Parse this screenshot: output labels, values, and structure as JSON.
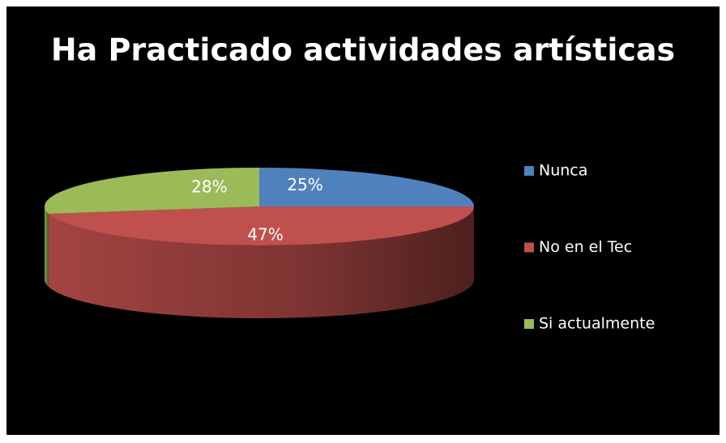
{
  "chart_data": {
    "type": "pie",
    "title": "Ha Practicado actividades artísticas",
    "categories": [
      "Nunca",
      "No en el Tec",
      "Si actualmente"
    ],
    "values": [
      25,
      47,
      28
    ],
    "value_labels": [
      "25%",
      "47%",
      "28%"
    ],
    "colors": [
      "#4f81bd",
      "#c0504d",
      "#9bbb59"
    ],
    "legend": "right"
  }
}
